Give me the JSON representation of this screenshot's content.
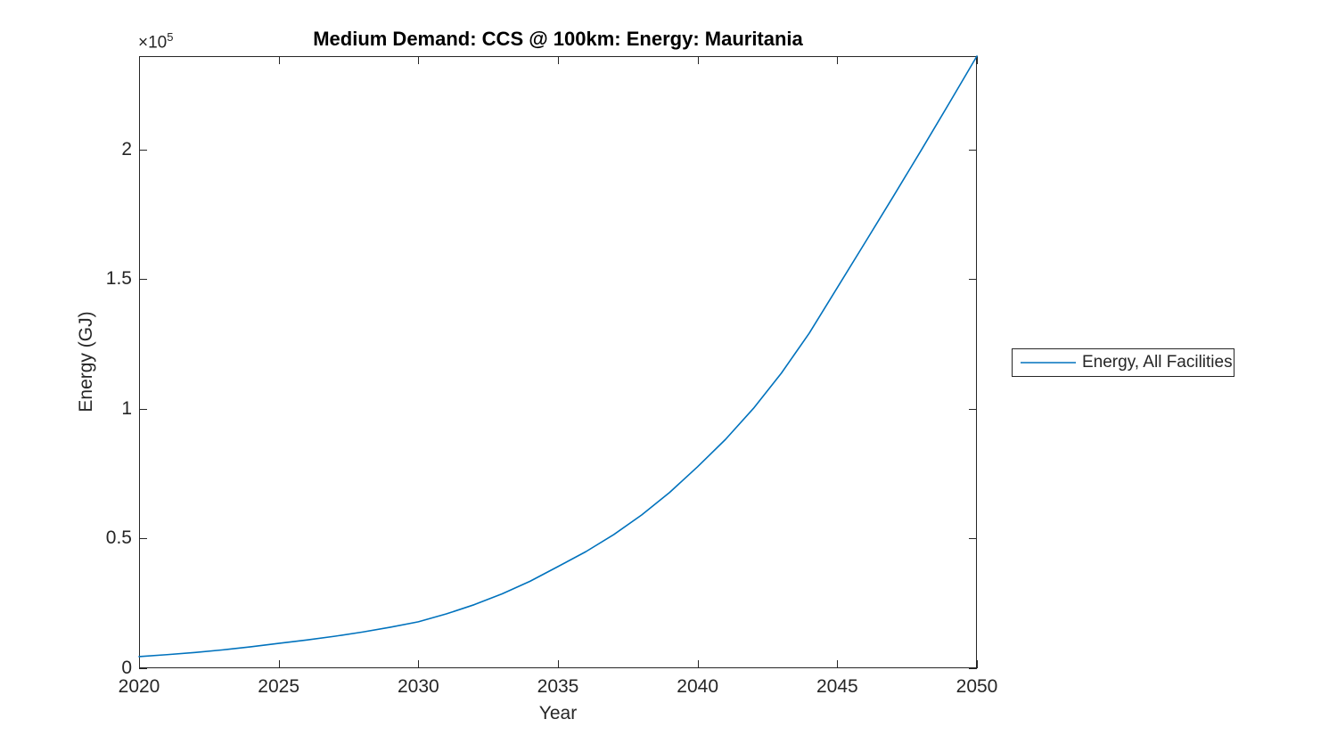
{
  "colors": {
    "line": "#0072BD",
    "axis": "#262626",
    "title": "#000000",
    "background": "#ffffff"
  },
  "chart_data": {
    "type": "line",
    "title": "Medium Demand: CCS @ 100km: Energy: Mauritania",
    "xlabel": "Year",
    "ylabel": "Energy (GJ)",
    "y_exponent_prefix": "×10",
    "y_exponent": "5",
    "xlim": [
      2020,
      2050
    ],
    "ylim": [
      0,
      236000
    ],
    "grid": false,
    "box": true,
    "tick_direction": "in",
    "x_tick_values": [
      2020,
      2025,
      2030,
      2035,
      2040,
      2045,
      2050
    ],
    "x_tick_labels": [
      "2020",
      "2025",
      "2030",
      "2035",
      "2040",
      "2045",
      "2050"
    ],
    "y_tick_values": [
      0,
      50000,
      100000,
      150000,
      200000
    ],
    "y_tick_labels": [
      "0",
      "0.5",
      "1",
      "1.5",
      "2"
    ],
    "legend": {
      "position": "right-outside",
      "border": true,
      "entries": [
        {
          "label": "Energy, All Facilities",
          "color": "#0072BD"
        }
      ]
    },
    "series": [
      {
        "name": "Energy, All Facilities",
        "color": "#0072BD",
        "line_width": 1.6,
        "x": [
          2020,
          2021,
          2022,
          2023,
          2024,
          2025,
          2026,
          2027,
          2028,
          2029,
          2030,
          2031,
          2032,
          2033,
          2034,
          2035,
          2036,
          2037,
          2038,
          2039,
          2040,
          2041,
          2042,
          2043,
          2044,
          2045,
          2046,
          2047,
          2048,
          2049,
          2050
        ],
        "values": [
          4500,
          5240,
          6090,
          7090,
          8250,
          9600,
          10880,
          12320,
          13960,
          15820,
          17900,
          20940,
          24500,
          28670,
          33540,
          39200,
          44960,
          51560,
          59120,
          67800,
          77700,
          88240,
          100200,
          113790,
          129220,
          146700,
          164200,
          181800,
          199600,
          217700,
          236000
        ]
      }
    ]
  }
}
